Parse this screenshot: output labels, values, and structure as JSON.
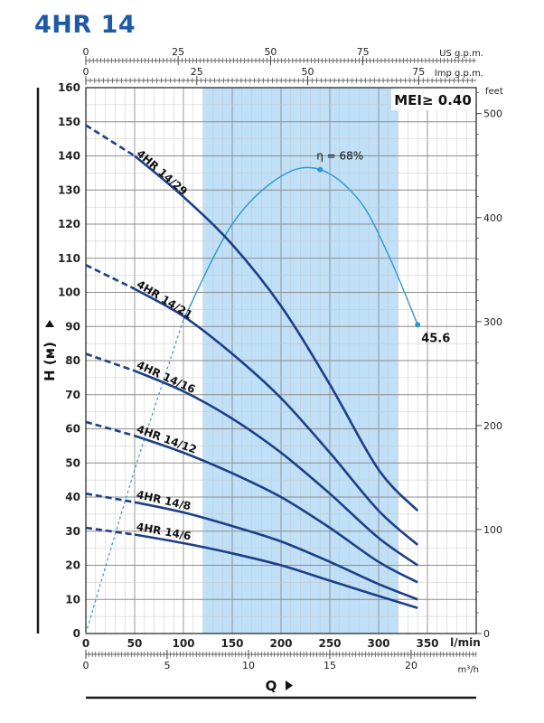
{
  "chart_data": {
    "type": "line",
    "title": "4HR 14",
    "xlabel": "Q",
    "ylabel": "H (м)",
    "x_unit": "l/min",
    "xlim": [
      0,
      400
    ],
    "ylim": [
      0,
      160
    ],
    "x_ticks": [
      0,
      50,
      100,
      150,
      200,
      250,
      300,
      350
    ],
    "y_ticks": [
      0,
      10,
      20,
      30,
      40,
      50,
      60,
      70,
      80,
      90,
      100,
      110,
      120,
      130,
      140,
      150,
      160
    ],
    "grid": true,
    "highlight_band": {
      "x_start": 120,
      "x_end": 320,
      "color": "#bfe0f7"
    },
    "badge": "MEI≥ 0.40",
    "secondary_axes": {
      "us_gpm": {
        "unit": "US g.p.m.",
        "ticks": [
          "0",
          "25",
          "50",
          "75"
        ],
        "values_lmin": [
          0,
          94.6,
          189.3,
          283.9
        ]
      },
      "imp_gpm": {
        "unit": "Imp g.p.m.",
        "ticks": [
          "0",
          "25",
          "50",
          "75"
        ],
        "values_lmin": [
          0,
          113.7,
          227.3,
          341
        ]
      },
      "m3h": {
        "unit": "m³/h",
        "ticks": [
          "0",
          "5",
          "10",
          "15",
          "20"
        ],
        "values_lmin": [
          0,
          83.3,
          166.7,
          250,
          333.3
        ]
      },
      "feet": {
        "unit": "feet",
        "ticks": [
          "0",
          "100",
          "200",
          "300",
          "400",
          "500"
        ],
        "values_m": [
          0,
          30.48,
          60.96,
          91.44,
          121.92,
          152.4
        ]
      }
    },
    "series": [
      {
        "name": "4HR 14/29",
        "x": [
          0,
          50,
          100,
          150,
          200,
          250,
          300,
          340
        ],
        "y": [
          149,
          140,
          128,
          114,
          96,
          73,
          48,
          36
        ],
        "dashed_until_x": 50
      },
      {
        "name": "4HR 14/21",
        "x": [
          0,
          50,
          100,
          150,
          200,
          250,
          300,
          340
        ],
        "y": [
          108,
          101,
          93,
          82,
          69,
          53,
          36,
          26
        ],
        "dashed_until_x": 50
      },
      {
        "name": "4HR 14/16",
        "x": [
          0,
          50,
          100,
          150,
          200,
          250,
          300,
          340
        ],
        "y": [
          82,
          77,
          71,
          63,
          53,
          41,
          28,
          20
        ],
        "dashed_until_x": 50
      },
      {
        "name": "4HR 14/12",
        "x": [
          0,
          50,
          100,
          150,
          200,
          250,
          300,
          340
        ],
        "y": [
          62,
          58,
          53,
          47,
          40,
          31,
          21,
          15
        ],
        "dashed_until_x": 50
      },
      {
        "name": "4HR 14/8",
        "x": [
          0,
          50,
          100,
          150,
          200,
          250,
          300,
          340
        ],
        "y": [
          41,
          38.5,
          35.5,
          31.5,
          27,
          21,
          14.5,
          10
        ],
        "dashed_until_x": 50
      },
      {
        "name": "4HR 14/6",
        "x": [
          0,
          50,
          100,
          150,
          200,
          250,
          300,
          340
        ],
        "y": [
          31,
          29,
          26.5,
          23.5,
          20,
          15.5,
          11,
          7.5
        ],
        "dashed_until_x": 50
      }
    ],
    "efficiency": {
      "label": "η = 68%",
      "end_label": "45.6",
      "x": [
        0,
        50,
        100,
        150,
        200,
        240,
        280,
        310,
        340
      ],
      "y": [
        0,
        48,
        92,
        120,
        134,
        136,
        127,
        111,
        90.5
      ],
      "dashed_until_x": 100,
      "peak": {
        "x": 240,
        "y": 136
      },
      "end": {
        "x": 340,
        "y": 90.5
      }
    }
  }
}
